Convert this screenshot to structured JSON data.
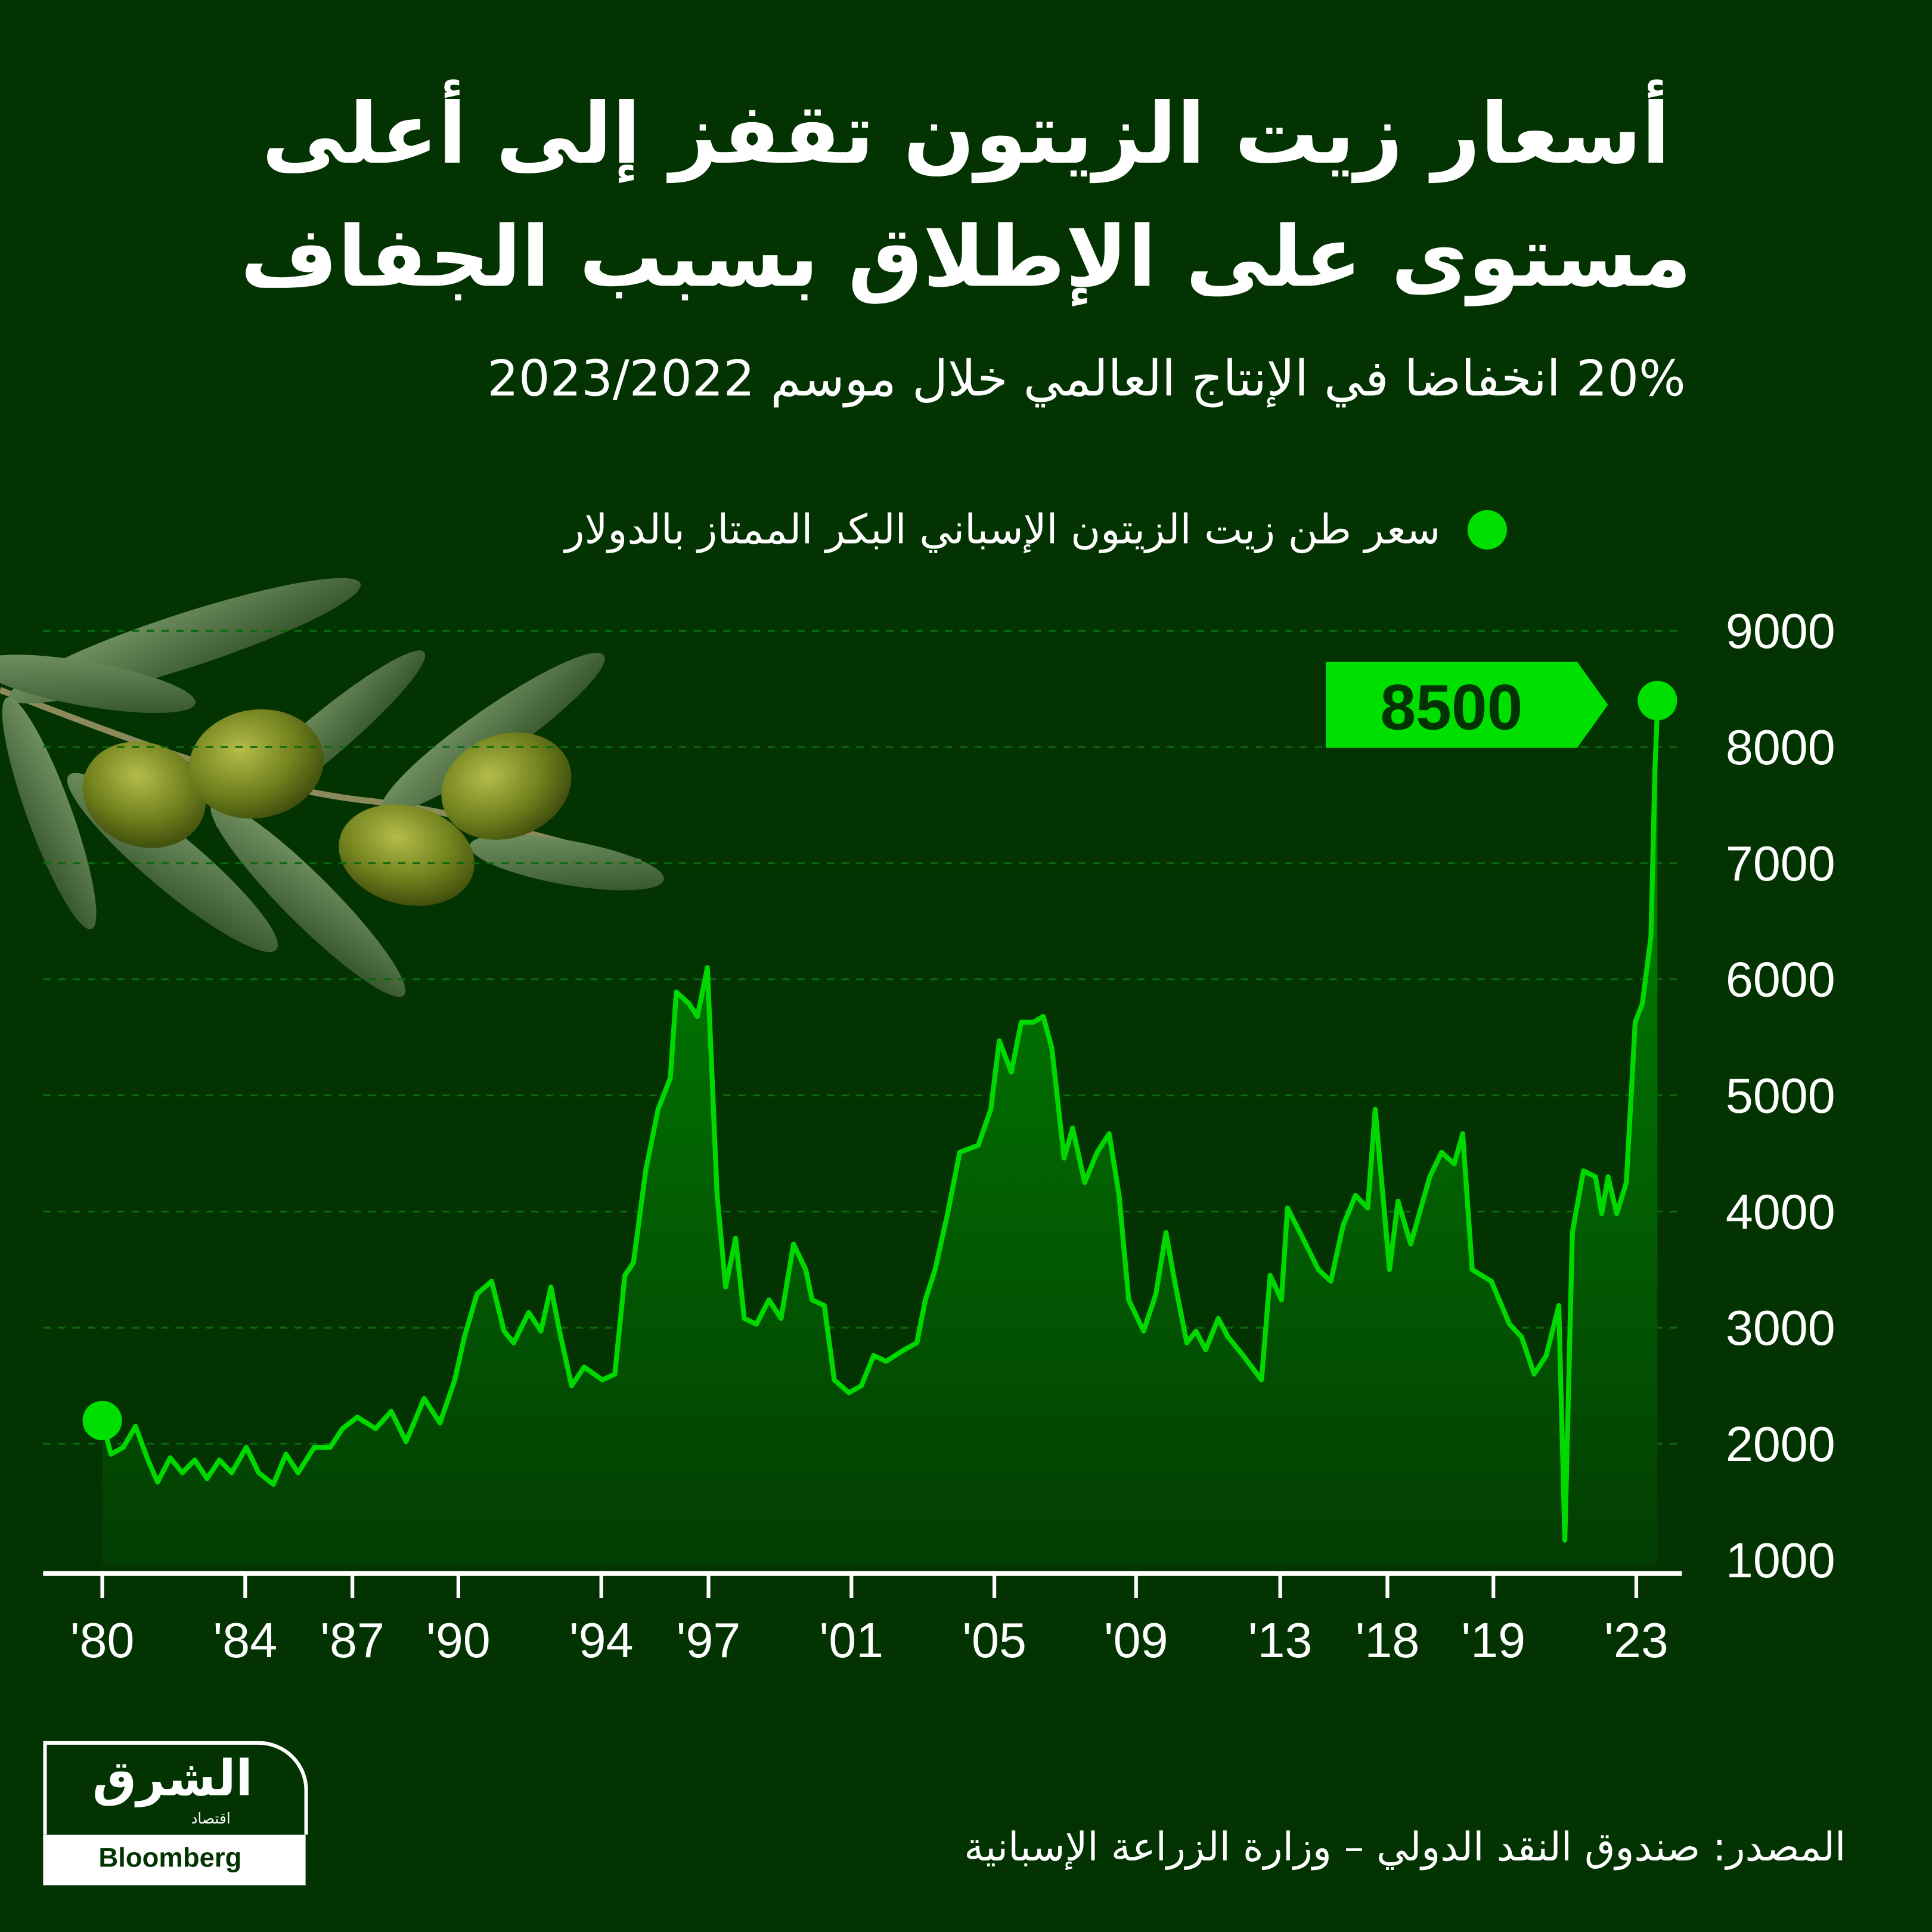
{
  "title_lines": [
    "أسعار زيت الزيتون تقفز إلى أعلى",
    "مستوى على الإطلاق بسبب الجفاف"
  ],
  "subtitle": "20% انخفاضا في الإنتاج العالمي خلال موسم 2023/2022",
  "source": "المصدر: صندوق النقد الدولي – وزارة الزراعة الإسبانية",
  "logo": {
    "name": "الشرق",
    "sub": "اقتصاد",
    "partner": "Bloomberg"
  },
  "colors": {
    "background": "#023301",
    "line": "#00d900",
    "accent": "#00e000",
    "fill_top": "#008a00",
    "fill_bottom": "#033d02"
  },
  "chart_data": {
    "type": "area",
    "legend": "سعر طن زيت الزيتون الإسباني البكر الممتاز بالدولار",
    "legend_placement": "top",
    "callout": "8500",
    "grid": true,
    "ylim": [
      1000,
      9000
    ],
    "y_ticks": [
      "9000",
      "8000",
      "7000",
      "6000",
      "5000",
      "4000",
      "3000",
      "2000",
      "1000"
    ],
    "x_ticks": [
      {
        "label": "'80",
        "year": 1980
      },
      {
        "label": "'84",
        "year": 1984
      },
      {
        "label": "'87",
        "year": 1987
      },
      {
        "label": "'90",
        "year": 1990
      },
      {
        "label": "'94",
        "year": 1994
      },
      {
        "label": "'97",
        "year": 1997
      },
      {
        "label": "'01",
        "year": 2001
      },
      {
        "label": "'05",
        "year": 2005
      },
      {
        "label": "'09",
        "year": 2009
      },
      {
        "label": "'13",
        "year": 2013
      },
      {
        "label": "'18",
        "year": 2018
      },
      {
        "label": "'19",
        "year": 2019
      },
      {
        "label": "'23",
        "year": 2023
      }
    ],
    "points": [
      [
        1980.0,
        2200
      ],
      [
        1980.24,
        1910
      ],
      [
        1980.59,
        1970
      ],
      [
        1980.93,
        2150
      ],
      [
        1981.28,
        1860
      ],
      [
        1981.55,
        1670
      ],
      [
        1981.9,
        1880
      ],
      [
        1982.24,
        1750
      ],
      [
        1982.59,
        1860
      ],
      [
        1982.93,
        1700
      ],
      [
        1983.28,
        1860
      ],
      [
        1983.62,
        1750
      ],
      [
        1984.03,
        1970
      ],
      [
        1984.38,
        1750
      ],
      [
        1984.79,
        1650
      ],
      [
        1985.14,
        1910
      ],
      [
        1985.48,
        1750
      ],
      [
        1985.93,
        1970
      ],
      [
        1986.38,
        1970
      ],
      [
        1986.72,
        2130
      ],
      [
        1987.14,
        2230
      ],
      [
        1987.66,
        2130
      ],
      [
        1988.1,
        2280
      ],
      [
        1988.52,
        2020
      ],
      [
        1989.03,
        2390
      ],
      [
        1989.48,
        2180
      ],
      [
        1989.9,
        2550
      ],
      [
        1990.17,
        2920
      ],
      [
        1990.52,
        3290
      ],
      [
        1990.93,
        3400
      ],
      [
        1991.28,
        2970
      ],
      [
        1991.55,
        2870
      ],
      [
        1991.97,
        3130
      ],
      [
        1992.31,
        2970
      ],
      [
        1992.59,
        3350
      ],
      [
        1992.83,
        2970
      ],
      [
        1993.17,
        2500
      ],
      [
        1993.52,
        2660
      ],
      [
        1994.03,
        2550
      ],
      [
        1994.38,
        2600
      ],
      [
        1994.66,
        3450
      ],
      [
        1994.9,
        3560
      ],
      [
        1995.24,
        4350
      ],
      [
        1995.59,
        4880
      ],
      [
        1995.93,
        5150
      ],
      [
        1996.1,
        5890
      ],
      [
        1996.45,
        5790
      ],
      [
        1996.69,
        5680
      ],
      [
        1996.97,
        6100
      ],
      [
        1997.24,
        4140
      ],
      [
        1997.48,
        3350
      ],
      [
        1997.76,
        3770
      ],
      [
        1998.0,
        3080
      ],
      [
        1998.34,
        3030
      ],
      [
        1998.69,
        3240
      ],
      [
        1999.03,
        3080
      ],
      [
        1999.38,
        3720
      ],
      [
        1999.72,
        3500
      ],
      [
        1999.9,
        3240
      ],
      [
        2000.24,
        3190
      ],
      [
        2000.52,
        2550
      ],
      [
        2000.93,
        2440
      ],
      [
        2001.28,
        2500
      ],
      [
        2001.62,
        2760
      ],
      [
        2001.97,
        2710
      ],
      [
        2002.48,
        2810
      ],
      [
        2002.83,
        2870
      ],
      [
        2003.07,
        3240
      ],
      [
        2003.34,
        3500
      ],
      [
        2003.69,
        3980
      ],
      [
        2004.03,
        4510
      ],
      [
        2004.55,
        4570
      ],
      [
        2004.9,
        4880
      ],
      [
        2005.14,
        5470
      ],
      [
        2005.48,
        5200
      ],
      [
        2005.76,
        5630
      ],
      [
        2006.1,
        5630
      ],
      [
        2006.38,
        5680
      ],
      [
        2006.62,
        5410
      ],
      [
        2006.97,
        4460
      ],
      [
        2007.21,
        4720
      ],
      [
        2007.55,
        4250
      ],
      [
        2007.9,
        4510
      ],
      [
        2008.24,
        4670
      ],
      [
        2008.52,
        4140
      ],
      [
        2008.79,
        3240
      ],
      [
        2009.21,
        2970
      ],
      [
        2009.55,
        3290
      ],
      [
        2009.83,
        3820
      ],
      [
        2010.07,
        3400
      ],
      [
        2010.41,
        2870
      ],
      [
        2010.66,
        2970
      ],
      [
        2010.93,
        2810
      ],
      [
        2011.28,
        3080
      ],
      [
        2011.55,
        2920
      ],
      [
        2011.97,
        2760
      ],
      [
        2012.48,
        2550
      ],
      [
        2012.72,
        3450
      ],
      [
        2013.06,
        3240
      ],
      [
        2013.34,
        4030
      ],
      [
        2013.92,
        3820
      ],
      [
        2014.78,
        3500
      ],
      [
        2015.36,
        3400
      ],
      [
        2015.93,
        3880
      ],
      [
        2016.51,
        4140
      ],
      [
        2017.08,
        4030
      ],
      [
        2017.43,
        4880
      ],
      [
        2018.02,
        3500
      ],
      [
        2018.1,
        4090
      ],
      [
        2018.22,
        3720
      ],
      [
        2018.4,
        4300
      ],
      [
        2018.51,
        4510
      ],
      [
        2018.63,
        4410
      ],
      [
        2018.71,
        4670
      ],
      [
        2018.8,
        3500
      ],
      [
        2018.98,
        3400
      ],
      [
        2019.45,
        3030
      ],
      [
        2019.79,
        2920
      ],
      [
        2020.14,
        2600
      ],
      [
        2020.48,
        2760
      ],
      [
        2020.83,
        3190
      ],
      [
        2021.0,
        1170
      ],
      [
        2021.21,
        3820
      ],
      [
        2021.52,
        4350
      ],
      [
        2021.86,
        4300
      ],
      [
        2022.03,
        3980
      ],
      [
        2022.21,
        4300
      ],
      [
        2022.45,
        3980
      ],
      [
        2022.72,
        4250
      ],
      [
        2022.97,
        5630
      ],
      [
        2023.17,
        5790
      ],
      [
        2023.41,
        6370
      ],
      [
        2023.52,
        7800
      ],
      [
        2023.59,
        8330
      ]
    ]
  }
}
